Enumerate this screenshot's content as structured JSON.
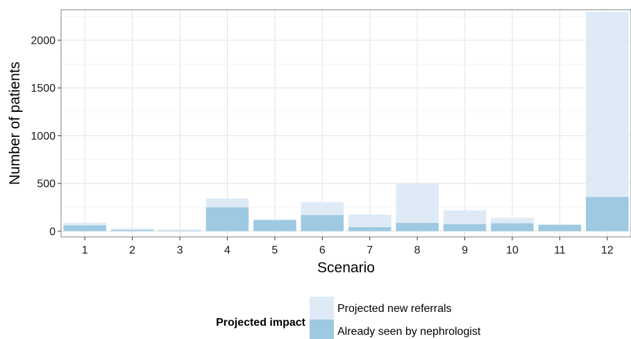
{
  "chart_data": {
    "type": "bar",
    "stacked": true,
    "title": "",
    "xlabel": "Scenario",
    "ylabel": "Number of patients",
    "categories": [
      "1",
      "2",
      "3",
      "4",
      "5",
      "6",
      "7",
      "8",
      "9",
      "10",
      "11",
      "12"
    ],
    "ylim": [
      -60,
      2320
    ],
    "yticks": [
      0,
      500,
      1000,
      1500,
      2000
    ],
    "grid": true,
    "legend_position": "bottom",
    "legend_title": "Projected impact",
    "series": [
      {
        "name": "Already seen by nephrologist",
        "color": "#9ecae1",
        "values": [
          62,
          12,
          5,
          250,
          115,
          170,
          42,
          88,
          75,
          82,
          68,
          360
        ]
      },
      {
        "name": "Projected new referrals",
        "color": "#deebf7",
        "values": [
          25,
          18,
          12,
          92,
          10,
          132,
          133,
          410,
          143,
          57,
          0,
          1940
        ]
      }
    ]
  }
}
